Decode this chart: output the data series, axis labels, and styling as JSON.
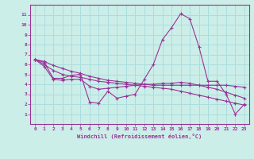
{
  "xlabel": "Windchill (Refroidissement éolien,°C)",
  "x": [
    0,
    1,
    2,
    3,
    4,
    5,
    6,
    7,
    8,
    9,
    10,
    11,
    12,
    13,
    14,
    15,
    16,
    17,
    18,
    19,
    20,
    21,
    22,
    23
  ],
  "line1": [
    6.5,
    6.2,
    4.6,
    4.6,
    4.9,
    5.0,
    2.2,
    2.1,
    3.3,
    2.6,
    2.8,
    3.0,
    4.5,
    6.0,
    8.5,
    9.7,
    11.1,
    10.6,
    7.8,
    4.3,
    4.3,
    3.0,
    1.0,
    2.0
  ],
  "line2": [
    6.5,
    5.8,
    4.5,
    4.4,
    4.5,
    4.5,
    3.8,
    3.5,
    3.6,
    3.7,
    3.8,
    3.9,
    4.0,
    4.0,
    4.1,
    4.1,
    4.2,
    4.1,
    3.9,
    3.7,
    3.5,
    3.2,
    2.9,
    2.6
  ],
  "line3": [
    6.5,
    6.0,
    5.4,
    5.0,
    4.8,
    4.7,
    4.5,
    4.3,
    4.2,
    4.1,
    4.0,
    3.9,
    3.8,
    3.7,
    3.6,
    3.5,
    3.3,
    3.1,
    2.9,
    2.7,
    2.5,
    2.3,
    2.1,
    1.9
  ],
  "line4": [
    6.5,
    6.3,
    5.9,
    5.6,
    5.3,
    5.1,
    4.8,
    4.6,
    4.4,
    4.3,
    4.2,
    4.1,
    4.0,
    3.9,
    3.9,
    3.9,
    3.9,
    3.9,
    3.9,
    3.9,
    3.9,
    3.9,
    3.8,
    3.7
  ],
  "color": "#993399",
  "bg_color": "#cceee8",
  "grid_color": "#aadddd",
  "ylim": [
    0,
    12
  ],
  "xlim": [
    -0.5,
    23.5
  ],
  "yticks": [
    1,
    2,
    3,
    4,
    5,
    6,
    7,
    8,
    9,
    10,
    11
  ],
  "xticks": [
    0,
    1,
    2,
    3,
    4,
    5,
    6,
    7,
    8,
    9,
    10,
    11,
    12,
    13,
    14,
    15,
    16,
    17,
    18,
    19,
    20,
    21,
    22,
    23
  ]
}
